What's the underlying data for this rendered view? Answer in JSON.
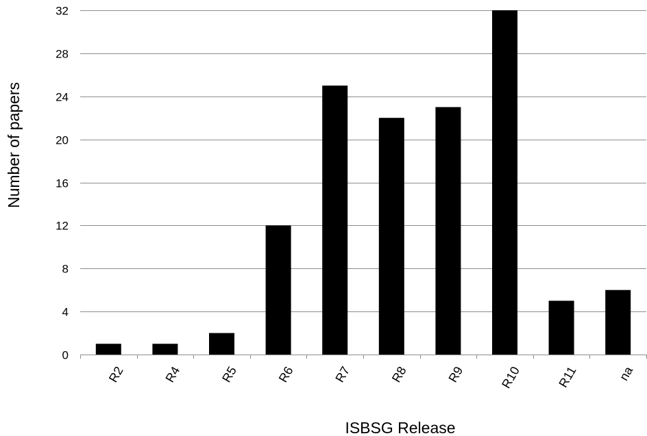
{
  "chart_data": {
    "type": "bar",
    "title": "",
    "xlabel": "ISBSG Release",
    "ylabel": "Number of papers",
    "categories": [
      "R2",
      "R4",
      "R5",
      "R6",
      "R7",
      "R8",
      "R9",
      "R10",
      "R11",
      "na"
    ],
    "values": [
      1,
      1,
      2,
      12,
      25,
      22,
      23,
      32,
      5,
      6
    ],
    "ylim": [
      0,
      32
    ],
    "yticks": [
      0,
      4,
      8,
      12,
      16,
      20,
      24,
      28,
      32
    ],
    "grid": true,
    "legend": "none",
    "colors": {
      "bar": "#000000",
      "grid": "#8c8c8c",
      "axis": "#8c8c8c"
    }
  }
}
